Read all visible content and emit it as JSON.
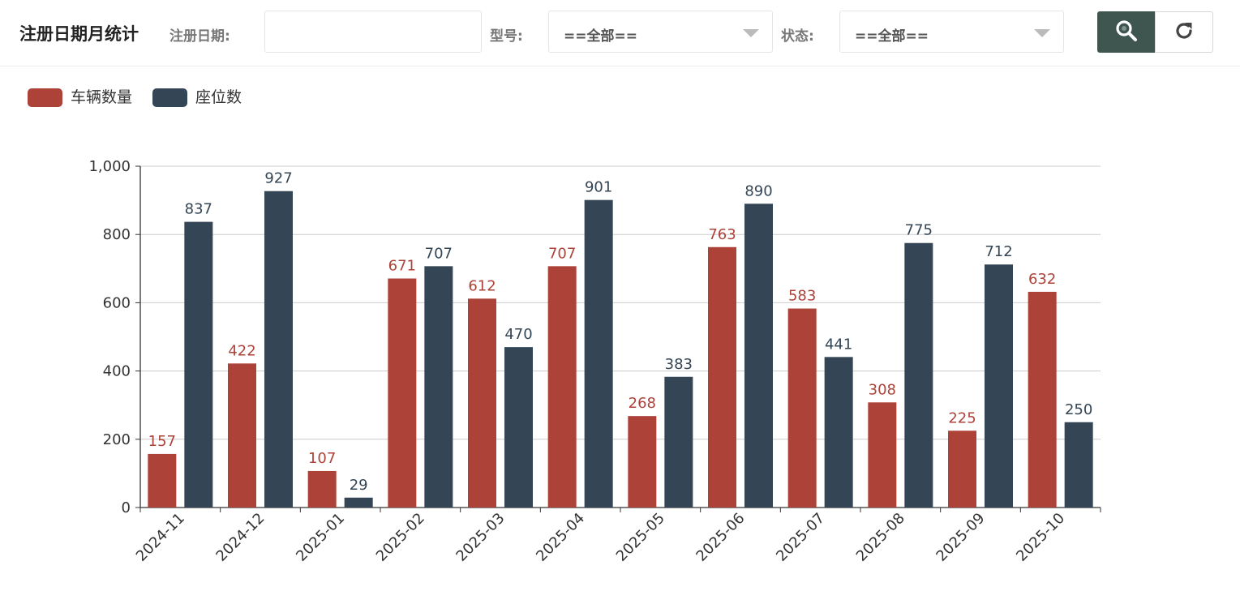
{
  "header": {
    "title": "注册日期月统计",
    "date_label": "注册日期:",
    "date_value": "",
    "model_label": "型号:",
    "model_value": "==全部==",
    "status_label": "状态:",
    "status_value": "==全部==",
    "search_icon": "search-icon",
    "refresh_icon": "refresh-icon"
  },
  "colors": {
    "vehicles": "#ad4239",
    "seats": "#344555",
    "search_button": "#3f5650",
    "grid": "#cccccc",
    "axis": "#333333"
  },
  "legend": [
    {
      "label": "车辆数量",
      "color": "#ad4239"
    },
    {
      "label": "座位数",
      "color": "#344555"
    }
  ],
  "chart_data": {
    "type": "bar",
    "title": "",
    "xlabel": "",
    "ylabel": "",
    "ylim": [
      0,
      1000
    ],
    "yticks": [
      0,
      200,
      400,
      600,
      800,
      1000
    ],
    "ytick_labels": [
      "0",
      "200",
      "400",
      "600",
      "800",
      "1,000"
    ],
    "grid": true,
    "legend_position": "top-left",
    "categories": [
      "2024-11",
      "2024-12",
      "2025-01",
      "2025-02",
      "2025-03",
      "2025-04",
      "2025-05",
      "2025-06",
      "2025-07",
      "2025-08",
      "2025-09",
      "2025-10"
    ],
    "series": [
      {
        "name": "车辆数量",
        "color": "#ad4239",
        "values": [
          157,
          422,
          107,
          671,
          612,
          707,
          268,
          763,
          583,
          308,
          225,
          632
        ]
      },
      {
        "name": "座位数",
        "color": "#344555",
        "values": [
          837,
          927,
          29,
          707,
          470,
          901,
          383,
          890,
          441,
          775,
          712,
          250
        ]
      }
    ]
  }
}
